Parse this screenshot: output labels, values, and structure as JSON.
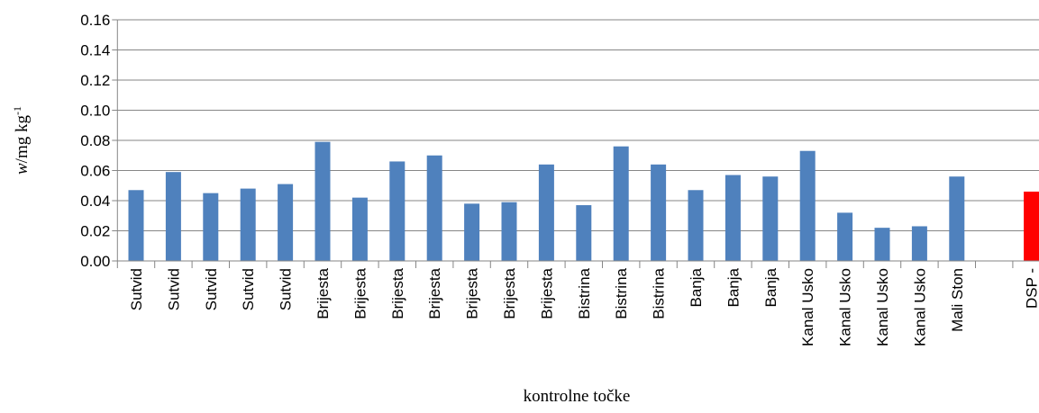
{
  "chart_data": {
    "type": "bar",
    "x_label": "kontrolne točke",
    "y_label": [
      "w",
      "/mg kg",
      "-1"
    ],
    "categories": [
      "Sutvid",
      "Sutvid",
      "Sutvid",
      "Sutvid",
      "Sutvid",
      "Brijesta",
      "Brijesta",
      "Brijesta",
      "Brijesta",
      "Brijesta",
      "Brijesta",
      "Brijesta",
      "Bistrina",
      "Bistrina",
      "Bistrina",
      "Banja",
      "Banja",
      "Banja",
      "Kanal Usko",
      "Kanal Usko",
      "Kanal Usko",
      "Kanal Usko",
      "Mali Ston",
      null,
      "DSP -"
    ],
    "values": [
      0.047,
      0.059,
      0.045,
      0.048,
      0.051,
      0.079,
      0.042,
      0.066,
      0.07,
      0.038,
      0.039,
      0.064,
      0.037,
      0.076,
      0.064,
      0.047,
      0.057,
      0.056,
      0.073,
      0.032,
      0.022,
      0.023,
      0.056,
      null,
      0.046
    ],
    "colors": [
      "#4f81bd",
      "#4f81bd",
      "#4f81bd",
      "#4f81bd",
      "#4f81bd",
      "#4f81bd",
      "#4f81bd",
      "#4f81bd",
      "#4f81bd",
      "#4f81bd",
      "#4f81bd",
      "#4f81bd",
      "#4f81bd",
      "#4f81bd",
      "#4f81bd",
      "#4f81bd",
      "#4f81bd",
      "#4f81bd",
      "#4f81bd",
      "#4f81bd",
      "#4f81bd",
      "#4f81bd",
      "#4f81bd",
      "#4f81bd",
      "#ff0000"
    ],
    "ylim": [
      0,
      0.16
    ],
    "yticks": [
      {
        "value": 0,
        "label": "0.00"
      },
      {
        "value": 0.02,
        "label": "0.02"
      },
      {
        "value": 0.04,
        "label": "0.04"
      },
      {
        "value": 0.06,
        "label": "0.06"
      },
      {
        "value": 0.08,
        "label": "0.08"
      },
      {
        "value": 0.1,
        "label": "0.10"
      },
      {
        "value": 0.12,
        "label": "0.12"
      },
      {
        "value": 0.14,
        "label": "0.14"
      },
      {
        "value": 0.16,
        "label": "0.16"
      }
    ],
    "grid": true
  }
}
